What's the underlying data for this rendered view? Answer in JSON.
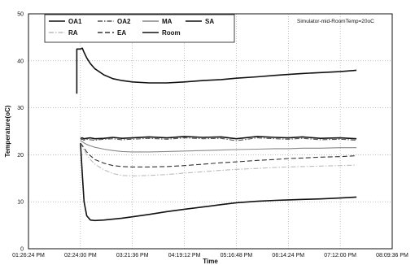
{
  "chart_data": {
    "type": "line",
    "title": "",
    "annotation": "Simulator-mid-RoomTemp=20oC",
    "xlabel": "Time",
    "ylabel": "Temperature(oC)",
    "xlim": [
      "01:26:24 PM",
      "08:09:36 PM"
    ],
    "ylim": [
      0,
      50
    ],
    "grid": true,
    "legend_position": "top-left",
    "x_tick_labels": [
      "01:26:24 PM",
      "02:24:00 PM",
      "03:21:36 PM",
      "04:19:12 PM",
      "05:16:48 PM",
      "06:14:24 PM",
      "07:12:00 PM",
      "08:09:36 PM"
    ],
    "y_tick_labels": [
      "0",
      "10",
      "20",
      "30",
      "40",
      "50"
    ],
    "x": [
      "02:24:00 PM",
      "02:26:00 PM",
      "02:28:00 PM",
      "02:31:00 PM",
      "02:35:00 PM",
      "02:40:00 PM",
      "02:50:00 PM",
      "03:00:00 PM",
      "03:10:00 PM",
      "03:21:36 PM",
      "03:40:00 PM",
      "04:00:00 PM",
      "04:19:12 PM",
      "04:40:00 PM",
      "05:00:00 PM",
      "05:16:48 PM",
      "05:40:00 PM",
      "06:00:00 PM",
      "06:14:24 PM",
      "06:30:00 PM",
      "06:50:00 PM",
      "07:12:00 PM",
      "07:30:00 PM"
    ],
    "series": [
      {
        "name": "OA1",
        "color": "#111111",
        "dash": "solid",
        "values": [
          23.5,
          23.6,
          23.4,
          23.5,
          23.6,
          23.4,
          23.5,
          23.7,
          23.5,
          23.6,
          23.8,
          23.6,
          23.9,
          23.7,
          23.8,
          23.4,
          23.9,
          23.7,
          23.6,
          23.8,
          23.5,
          23.6,
          23.4
        ]
      },
      {
        "name": "OA2",
        "color": "#555555",
        "dash": "dashdot",
        "values": [
          23.2,
          23.3,
          23.1,
          23.3,
          23.2,
          23.1,
          23.3,
          23.4,
          23.2,
          23.3,
          23.5,
          23.3,
          23.6,
          23.4,
          23.5,
          23.0,
          23.6,
          23.4,
          23.3,
          23.5,
          23.2,
          23.3,
          23.1
        ]
      },
      {
        "name": "MA",
        "color": "#888888",
        "dash": "solid",
        "values": [
          23.0,
          22.8,
          22.5,
          22.2,
          21.9,
          21.6,
          21.2,
          20.9,
          20.7,
          20.6,
          20.6,
          20.7,
          20.8,
          20.9,
          21.0,
          21.1,
          21.2,
          21.3,
          21.3,
          21.4,
          21.4,
          21.5,
          21.5
        ]
      },
      {
        "name": "SA",
        "color": "#111111",
        "dash": "solid",
        "values": [
          22.5,
          16.0,
          10.0,
          7.0,
          6.1,
          6.0,
          6.1,
          6.3,
          6.5,
          6.8,
          7.3,
          7.9,
          8.4,
          8.9,
          9.4,
          9.8,
          10.1,
          10.3,
          10.4,
          10.5,
          10.6,
          10.8,
          11.0
        ]
      },
      {
        "name": "RA",
        "color": "#bbbbbb",
        "dash": "dashdot",
        "values": [
          22.5,
          21.8,
          21.0,
          20.0,
          19.0,
          18.0,
          16.8,
          16.0,
          15.6,
          15.5,
          15.6,
          15.8,
          16.1,
          16.4,
          16.7,
          16.9,
          17.1,
          17.3,
          17.4,
          17.5,
          17.6,
          17.7,
          17.8
        ]
      },
      {
        "name": "EA",
        "color": "#333333",
        "dash": "dash",
        "values": [
          22.5,
          22.0,
          21.4,
          20.6,
          19.8,
          19.0,
          18.2,
          17.7,
          17.5,
          17.4,
          17.4,
          17.5,
          17.7,
          18.0,
          18.3,
          18.5,
          18.8,
          19.0,
          19.2,
          19.3,
          19.5,
          19.6,
          19.8
        ]
      },
      {
        "name": "Room",
        "color": "#111111",
        "dash": "solid",
        "values": [
          42.5,
          42.7,
          41.8,
          40.6,
          39.4,
          38.3,
          37.0,
          36.2,
          35.8,
          35.5,
          35.3,
          35.3,
          35.5,
          35.8,
          36.0,
          36.3,
          36.6,
          36.9,
          37.1,
          37.3,
          37.5,
          37.7,
          38.0
        ]
      }
    ],
    "room_start": {
      "x": "02:20:00 PM",
      "values": [
        33.0,
        42.5
      ]
    }
  }
}
